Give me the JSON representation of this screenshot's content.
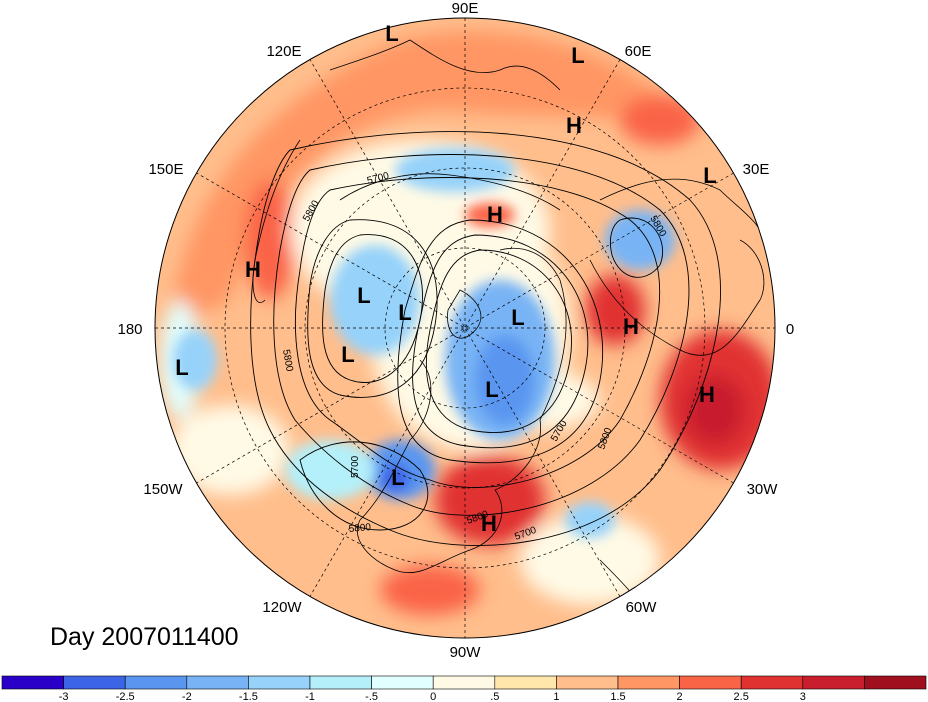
{
  "map": {
    "projection": "polar-stereographic-north",
    "longitude_labels": [
      "90E",
      "60E",
      "30E",
      "0",
      "30W",
      "60W",
      "90W",
      "120W",
      "150W",
      "180",
      "150E",
      "120E"
    ],
    "contour_labels": [
      "5700",
      "5800",
      "5800",
      "5800",
      "5700",
      "5800",
      "5700",
      "5800",
      "5700",
      "5800"
    ],
    "pressure_centers": [
      "L",
      "L",
      "H",
      "L",
      "H",
      "H",
      "L",
      "L",
      "L",
      "L",
      "H",
      "H",
      "L",
      "L",
      "H",
      "L"
    ],
    "day_label": "Day 2007011400"
  },
  "colorbar": {
    "colors": [
      "#2a00c8",
      "#3c64e6",
      "#5a96f0",
      "#78b4f5",
      "#96d2fa",
      "#b4f0fa",
      "#e1ffff",
      "#fffae6",
      "#ffe6aa",
      "#ffbe8c",
      "#ff9664",
      "#fa6446",
      "#e13232",
      "#c81e2d",
      "#a00f1e"
    ],
    "labels": [
      "-3",
      "-2.5",
      "-2",
      "-1.5",
      "-1",
      "-.5",
      "0",
      ".5",
      "1",
      "1.5",
      "2",
      "2.5",
      "3"
    ]
  }
}
